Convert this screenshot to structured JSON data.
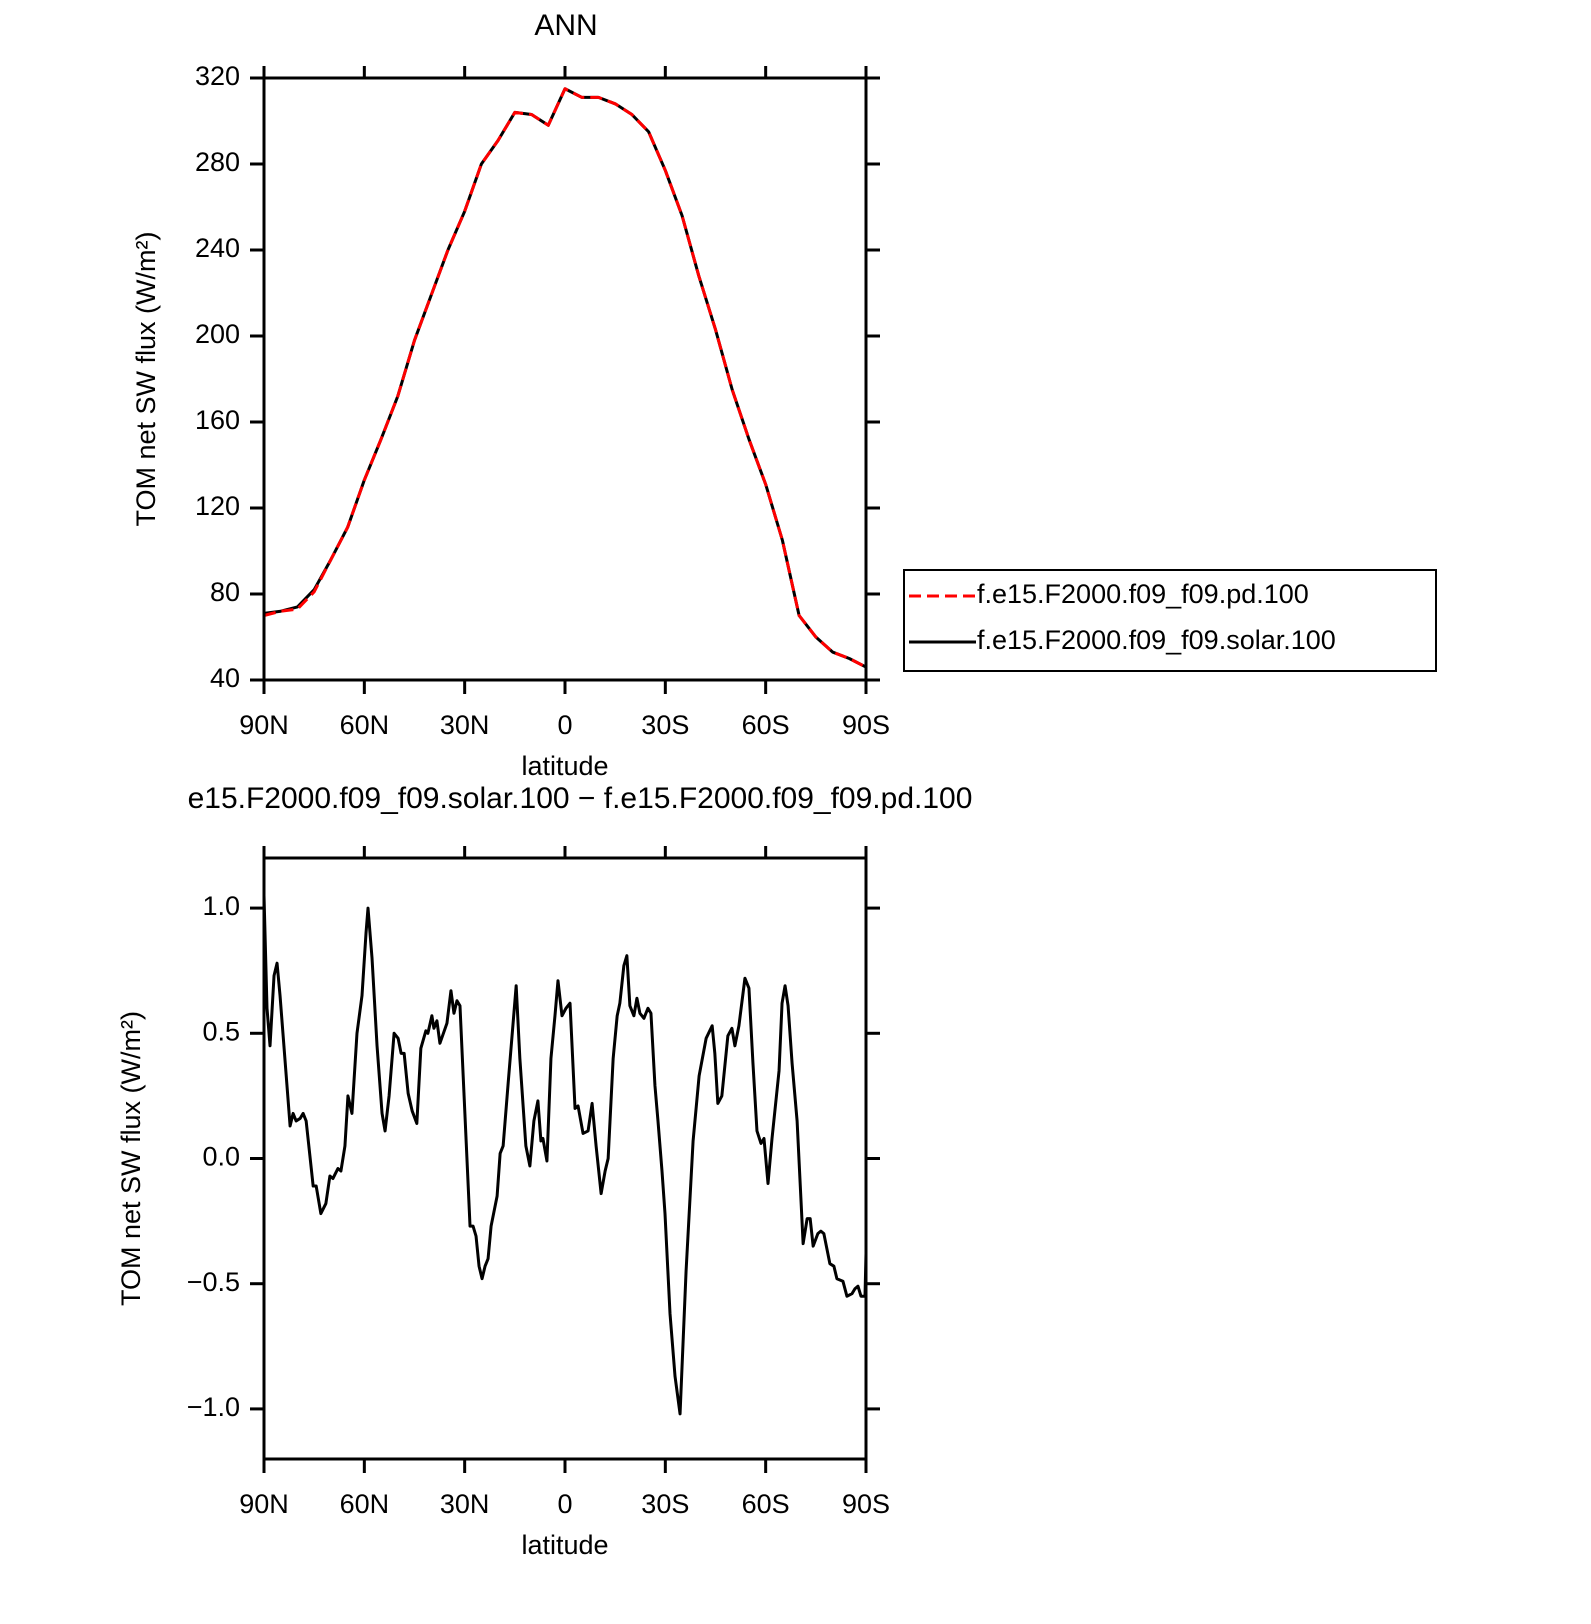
{
  "chart_data": [
    {
      "type": "line",
      "title": "ANN",
      "x_label": "latitude",
      "y_label": "TOM net SW flux (W/m²)",
      "xlim": [
        90,
        -90
      ],
      "xticks": [
        {
          "value": 90,
          "label": "90N"
        },
        {
          "value": 60,
          "label": "60N"
        },
        {
          "value": 30,
          "label": "30N"
        },
        0,
        {
          "value": -30,
          "label": "30S"
        },
        {
          "value": -60,
          "label": "60S"
        },
        {
          "value": -90,
          "label": "90S"
        }
      ],
      "ylim": [
        40,
        320
      ],
      "yticks": [
        40,
        80,
        120,
        160,
        200,
        240,
        280,
        320
      ],
      "legend": "right",
      "x": [
        90,
        85,
        80,
        75,
        70,
        65,
        60,
        55,
        50,
        45,
        40,
        35,
        30,
        25,
        20,
        15,
        10,
        5,
        0,
        -5,
        -10,
        -15,
        -20,
        -25,
        -30,
        -35,
        -40,
        -45,
        -50,
        -55,
        -60,
        -65,
        -70,
        -75,
        -80,
        -85,
        -90
      ],
      "series": [
        {
          "name": "f.e15.F2000.f09_f09.pd.100",
          "color": "#ff0000",
          "linestyle": "dashed",
          "values": [
            70,
            72,
            73,
            81,
            96,
            111,
            133,
            152,
            172,
            198,
            219,
            240,
            258,
            280,
            291,
            304,
            303,
            298,
            315,
            311,
            311,
            308,
            303,
            295,
            277,
            256,
            228,
            203,
            175,
            152,
            131,
            105,
            70,
            60,
            53,
            50,
            46
          ]
        },
        {
          "name": "f.e15.F2000.f09_f09.solar.100",
          "color": "#000000",
          "linestyle": "solid",
          "values": [
            71,
            72,
            74,
            82,
            96,
            111,
            133,
            152,
            172,
            198,
            219,
            240,
            258,
            280,
            291,
            304,
            303,
            298,
            315,
            311,
            311,
            308,
            303,
            295,
            277,
            256,
            228,
            203,
            175,
            152,
            131,
            105,
            70,
            60,
            53,
            50,
            46
          ]
        }
      ]
    },
    {
      "type": "line",
      "title": "e15.F2000.f09_f09.solar.100 − f.e15.F2000.f09_f09.pd.100",
      "x_label": "latitude",
      "y_label": "TOM net SW flux (W/m²)",
      "xlim": [
        90,
        -90
      ],
      "xticks": [
        {
          "value": 90,
          "label": "90N"
        },
        {
          "value": 60,
          "label": "60N"
        },
        {
          "value": 30,
          "label": "30N"
        },
        0,
        {
          "value": -30,
          "label": "30S"
        },
        {
          "value": -60,
          "label": "60S"
        },
        {
          "value": -90,
          "label": "90S"
        }
      ],
      "ylim": [
        -1.2,
        1.2
      ],
      "yticks": [
        {
          "value": -1,
          "label": "−1.0"
        },
        {
          "value": -0.5,
          "label": "−0.5"
        },
        {
          "value": 0,
          "label": "0.0"
        },
        0.5,
        {
          "value": 1,
          "label": "1.0"
        }
      ],
      "x": [
        90,
        89.1,
        88.2,
        87.0,
        86.1,
        85.2,
        82.2,
        81.3,
        80.4,
        79.2,
        78.3,
        77.4,
        75.3,
        74.4,
        73.0,
        71.5,
        70.3,
        69.4,
        67.9,
        67.0,
        65.8,
        64.9,
        63.7,
        62.2,
        60.7,
        59.5,
        58.9,
        57.7,
        56.2,
        54.7,
        53.8,
        52.6,
        51.1,
        49.9,
        49.0,
        48.1,
        46.9,
        45.7,
        44.3,
        43.1,
        41.6,
        41.0,
        39.8,
        39.2,
        38.3,
        37.4,
        35.3,
        34.1,
        33.2,
        32.3,
        31.4,
        28.4,
        27.5,
        26.6,
        25.7,
        24.8,
        23.9,
        23.0,
        22.1,
        20.3,
        19.4,
        18.5,
        17.0,
        14.6,
        13.5,
        11.7,
        10.5,
        9.3,
        8.1,
        7.2,
        6.6,
        5.4,
        4.2,
        3.0,
        2.1,
        0.9,
        -0.3,
        -1.5,
        -3.0,
        -3.9,
        -5.4,
        -6.9,
        -8.1,
        -9.3,
        -10.8,
        -12.0,
        -12.9,
        -14.4,
        -15.6,
        -16.4,
        -17.6,
        -18.5,
        -19.4,
        -20.6,
        -21.5,
        -22.4,
        -23.6,
        -24.8,
        -25.7,
        -26.9,
        -27.8,
        -29.0,
        -29.9,
        -31.4,
        -32.9,
        -34.4,
        -36.2,
        -38.3,
        -40.1,
        -42.2,
        -44.0,
        -44.8,
        -45.7,
        -46.9,
        -48.7,
        -49.9,
        -50.8,
        -52.0,
        -53.8,
        -55.0,
        -56.2,
        -57.4,
        -58.6,
        -59.5,
        -60.7,
        -61.9,
        -64.0,
        -64.9,
        -65.8,
        -66.7,
        -67.9,
        -69.4,
        -71.2,
        -72.4,
        -73.3,
        -74.2,
        -75.6,
        -76.5,
        -77.4,
        -79.2,
        -80.4,
        -81.3,
        -83.1,
        -84.3,
        -85.8,
        -86.7,
        -87.6,
        -88.5,
        -89.7,
        -90
      ],
      "series": [
        {
          "color": "#000000",
          "linestyle": "solid",
          "values": [
            1.05,
            0.6,
            0.45,
            0.73,
            0.78,
            0.65,
            0.13,
            0.18,
            0.15,
            0.16,
            0.18,
            0.15,
            -0.11,
            -0.11,
            -0.22,
            -0.18,
            -0.07,
            -0.08,
            -0.04,
            -0.05,
            0.05,
            0.25,
            0.18,
            0.5,
            0.65,
            0.9,
            1.0,
            0.8,
            0.45,
            0.18,
            0.11,
            0.25,
            0.5,
            0.48,
            0.42,
            0.42,
            0.26,
            0.19,
            0.14,
            0.44,
            0.51,
            0.5,
            0.57,
            0.52,
            0.55,
            0.46,
            0.54,
            0.67,
            0.58,
            0.63,
            0.61,
            -0.27,
            -0.27,
            -0.31,
            -0.43,
            -0.48,
            -0.43,
            -0.4,
            -0.27,
            -0.15,
            0.02,
            0.05,
            0.3,
            0.69,
            0.4,
            0.05,
            -0.03,
            0.15,
            0.23,
            0.07,
            0.08,
            -0.01,
            0.4,
            0.57,
            0.71,
            0.57,
            0.6,
            0.62,
            0.2,
            0.21,
            0.1,
            0.11,
            0.22,
            0.05,
            -0.14,
            -0.05,
            0,
            0.4,
            0.57,
            0.62,
            0.77,
            0.81,
            0.61,
            0.57,
            0.64,
            0.58,
            0.56,
            0.6,
            0.58,
            0.29,
            0.15,
            -0.05,
            -0.22,
            -0.62,
            -0.87,
            -1.02,
            -0.45,
            0.07,
            0.33,
            0.48,
            0.53,
            0.42,
            0.22,
            0.25,
            0.49,
            0.52,
            0.45,
            0.53,
            0.72,
            0.68,
            0.38,
            0.11,
            0.06,
            0.08,
            -0.1,
            0.08,
            0.35,
            0.62,
            0.69,
            0.61,
            0.38,
            0.15,
            -0.34,
            -0.24,
            -0.24,
            -0.35,
            -0.3,
            -0.29,
            -0.3,
            -0.42,
            -0.43,
            -0.48,
            -0.49,
            -0.55,
            -0.54,
            -0.52,
            -0.51,
            -0.55,
            -0.55,
            -0.38
          ]
        }
      ]
    }
  ]
}
